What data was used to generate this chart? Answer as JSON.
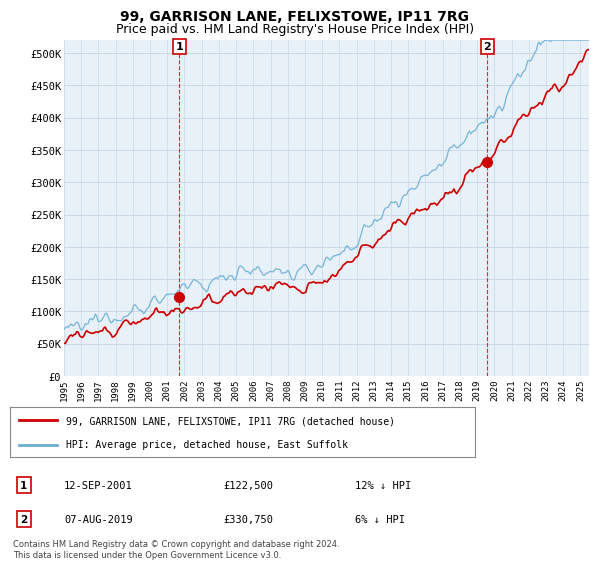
{
  "title": "99, GARRISON LANE, FELIXSTOWE, IP11 7RG",
  "subtitle": "Price paid vs. HM Land Registry's House Price Index (HPI)",
  "ylim": [
    0,
    520000
  ],
  "yticks": [
    0,
    50000,
    100000,
    150000,
    200000,
    250000,
    300000,
    350000,
    400000,
    450000,
    500000
  ],
  "ytick_labels": [
    "£0",
    "£50K",
    "£100K",
    "£150K",
    "£200K",
    "£250K",
    "£300K",
    "£350K",
    "£400K",
    "£450K",
    "£500K"
  ],
  "xmin": 1995.0,
  "xmax": 2025.5,
  "hpi_color": "#6baed6",
  "price_color": "#cc0000",
  "bg_color": "#e8f0f8",
  "grid_color": "#c8d8e8",
  "transaction1_x": 2001.7,
  "transaction1_y": 122500,
  "transaction1_label": "1",
  "transaction2_x": 2019.6,
  "transaction2_y": 330750,
  "transaction2_label": "2",
  "legend_line1": "99, GARRISON LANE, FELIXSTOWE, IP11 7RG (detached house)",
  "legend_line2": "HPI: Average price, detached house, East Suffolk",
  "table_row1": [
    "1",
    "12-SEP-2001",
    "£122,500",
    "12% ↓ HPI"
  ],
  "table_row2": [
    "2",
    "07-AUG-2019",
    "£330,750",
    "6% ↓ HPI"
  ],
  "footnote": "Contains HM Land Registry data © Crown copyright and database right 2024.\nThis data is licensed under the Open Government Licence v3.0.",
  "title_fontsize": 10,
  "subtitle_fontsize": 9
}
